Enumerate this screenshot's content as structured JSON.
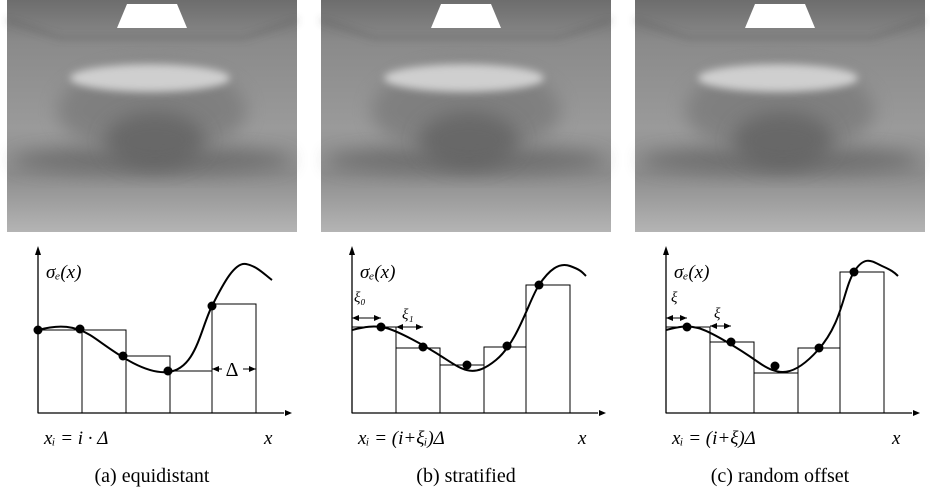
{
  "panels": [
    {
      "plot": {
        "y_label": "σₑ(x)",
        "x_label": "x",
        "formula": "xᵢ = i · Δ",
        "spacing_label": "Δ"
      },
      "caption": "(a) equidistant"
    },
    {
      "plot": {
        "y_label": "σₑ(x)",
        "x_label": "x",
        "formula": "xᵢ = (i+ξᵢ)Δ",
        "offset_labels": [
          "ξ₀",
          "ξ₁"
        ]
      },
      "caption": "(b) stratified"
    },
    {
      "plot": {
        "y_label": "σₑ(x)",
        "x_label": "x",
        "formula": "xᵢ = (i+ξ)Δ",
        "offset_labels": [
          "ξ",
          "ξ"
        ]
      },
      "caption": "(c) random offset"
    }
  ]
}
